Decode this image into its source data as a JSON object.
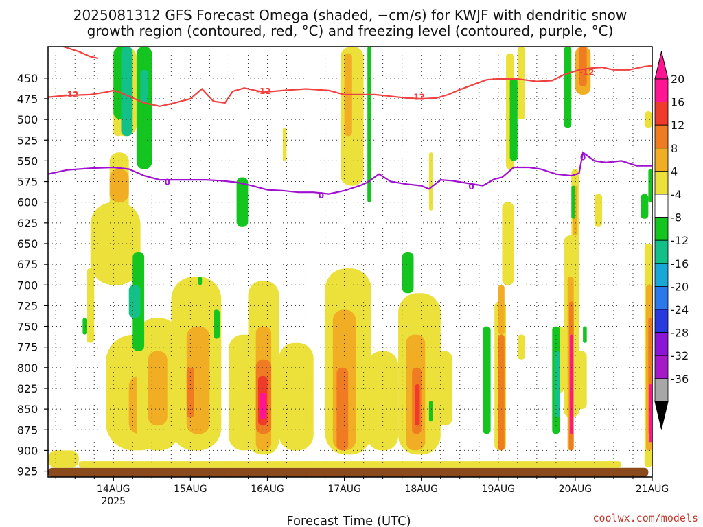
{
  "chart_data": {
    "type": "heatmap",
    "title_line1": "2025081312 GFS Forecast Omega (shaded, −cm/s) for KWJF with dendritic snow",
    "title_line2": "growth region (contoured, red, °C) and freezing level (contoured, purple, °C)",
    "xlabel": "Forecast Time (UTC)",
    "credit": "coolwx.com/models",
    "y_ticks": [
      450,
      475,
      500,
      525,
      550,
      575,
      600,
      625,
      650,
      675,
      700,
      725,
      750,
      775,
      800,
      825,
      850,
      875,
      900,
      925
    ],
    "ylim_hpa": [
      412,
      932
    ],
    "x_ticks": [
      {
        "label": "14AUG",
        "sub": "2025",
        "day": 1
      },
      {
        "label": "15AUG",
        "sub": "",
        "day": 2
      },
      {
        "label": "16AUG",
        "sub": "",
        "day": 3
      },
      {
        "label": "17AUG",
        "sub": "",
        "day": 4
      },
      {
        "label": "18AUG",
        "sub": "",
        "day": 5
      },
      {
        "label": "19AUG",
        "sub": "",
        "day": 6
      },
      {
        "label": "20AUG",
        "sub": "",
        "day": 7
      },
      {
        "label": "21AUG",
        "sub": "",
        "day": 8
      }
    ],
    "xlim_days": [
      0.15,
      8.0
    ],
    "grid": true,
    "colorbar": {
      "levels": [
        20,
        16,
        12,
        8,
        4,
        -4,
        -8,
        -12,
        -16,
        -20,
        -24,
        -28,
        -32,
        -36
      ],
      "colors": [
        "#ff1493",
        "#f03a2a",
        "#ef7b22",
        "#f1ad24",
        "#ece03a",
        "#ffffff",
        "#14c51f",
        "#13c088",
        "#19a8d6",
        "#2a78ea",
        "#2739df",
        "#8b14d6",
        "#a51ac8",
        "#a7a7a7"
      ],
      "top_cap": "#ff1493",
      "bottom_cap": "#000000"
    },
    "series": [
      {
        "name": "-12",
        "color": "#f04040",
        "labels": [
          {
            "text": "-12",
            "day": 0.45,
            "p": 470
          },
          {
            "text": "-12",
            "day": 2.95,
            "p": 466
          },
          {
            "text": "-12",
            "day": 4.95,
            "p": 473
          },
          {
            "text": "-12",
            "day": 7.15,
            "p": 443
          }
        ],
        "x": [
          0.15,
          0.4,
          0.7,
          0.9,
          1.0,
          1.1,
          1.25,
          1.4,
          1.6,
          1.75,
          2.0,
          2.15,
          2.3,
          2.45,
          2.55,
          2.7,
          2.8,
          2.95,
          3.2,
          3.5,
          3.8,
          4.0,
          4.2,
          4.4,
          4.6,
          4.8,
          5.0,
          5.2,
          5.35,
          5.5,
          5.7,
          5.85,
          6.0,
          6.25,
          6.5,
          6.7,
          6.85,
          7.05,
          7.2,
          7.35,
          7.5,
          7.7,
          7.9,
          8.0
        ],
        "y": [
          473,
          471,
          470,
          467,
          465,
          468,
          474,
          480,
          484,
          481,
          475,
          463,
          478,
          480,
          466,
          462,
          464,
          467,
          465,
          463,
          465,
          470,
          470,
          470,
          472,
          474,
          475,
          474,
          470,
          464,
          457,
          452,
          451,
          451,
          454,
          453,
          446,
          440,
          438,
          437,
          440,
          440,
          436,
          435
        ]
      },
      {
        "name": "-12 upper",
        "color": "#f04040",
        "labels": [],
        "x": [
          0.35,
          0.55,
          0.7,
          0.8
        ],
        "y": [
          412,
          418,
          424,
          426
        ]
      },
      {
        "name": "0",
        "color": "#a010d0",
        "labels": [
          {
            "text": "0",
            "day": 1.7,
            "p": 576
          },
          {
            "text": "0",
            "day": 3.7,
            "p": 592
          },
          {
            "text": "0",
            "day": 5.65,
            "p": 581
          },
          {
            "text": "0",
            "day": 7.1,
            "p": 546
          }
        ],
        "x": [
          0.15,
          0.4,
          0.7,
          1.0,
          1.2,
          1.4,
          1.6,
          1.8,
          2.0,
          2.2,
          2.4,
          2.6,
          2.8,
          3.0,
          3.2,
          3.4,
          3.6,
          3.8,
          4.0,
          4.2,
          4.3,
          4.45,
          4.6,
          4.8,
          5.0,
          5.1,
          5.25,
          5.4,
          5.6,
          5.8,
          5.95,
          6.05,
          6.2,
          6.4,
          6.55,
          6.75,
          6.95,
          7.05,
          7.1,
          7.25,
          7.4,
          7.6,
          7.8,
          8.0
        ],
        "y": [
          566,
          561,
          559,
          558,
          560,
          568,
          573,
          573,
          573,
          573,
          574,
          576,
          580,
          585,
          586,
          588,
          588,
          590,
          586,
          580,
          576,
          566,
          575,
          578,
          580,
          584,
          573,
          574,
          577,
          580,
          572,
          570,
          558,
          558,
          560,
          566,
          568,
          565,
          540,
          550,
          552,
          550,
          556,
          556
        ]
      }
    ],
    "cells_columns": [
      "day_start",
      "day_end",
      "p_top",
      "p_bottom",
      "omega_level"
    ],
    "cells": [
      [
        0.15,
        7.95,
        921,
        932,
        "terrain"
      ],
      [
        0.15,
        0.55,
        900,
        921,
        4
      ],
      [
        0.55,
        7.6,
        913,
        921,
        4
      ],
      [
        0.65,
        0.75,
        680,
        770,
        4
      ],
      [
        0.7,
        1.35,
        600,
        700,
        4
      ],
      [
        0.95,
        1.2,
        540,
        620,
        4
      ],
      [
        0.95,
        1.2,
        560,
        600,
        8
      ],
      [
        0.9,
        1.7,
        760,
        900,
        4
      ],
      [
        1.2,
        1.5,
        810,
        880,
        8
      ],
      [
        1.3,
        1.85,
        740,
        900,
        4
      ],
      [
        1.45,
        1.7,
        780,
        870,
        8
      ],
      [
        1.75,
        2.4,
        690,
        900,
        4
      ],
      [
        1.95,
        2.25,
        750,
        880,
        8
      ],
      [
        1.95,
        2.05,
        800,
        860,
        12
      ],
      [
        2.5,
        2.9,
        760,
        900,
        4
      ],
      [
        2.75,
        3.15,
        695,
        905,
        4
      ],
      [
        2.85,
        3.05,
        750,
        900,
        8
      ],
      [
        2.85,
        3.05,
        790,
        880,
        12
      ],
      [
        2.88,
        3.0,
        810,
        870,
        16
      ],
      [
        2.9,
        2.98,
        830,
        862,
        20
      ],
      [
        3.15,
        3.6,
        770,
        900,
        4
      ],
      [
        3.75,
        4.35,
        680,
        905,
        4
      ],
      [
        3.85,
        4.15,
        730,
        900,
        8
      ],
      [
        3.9,
        4.05,
        800,
        900,
        12
      ],
      [
        4.3,
        4.7,
        780,
        900,
        4
      ],
      [
        4.7,
        5.25,
        710,
        905,
        4
      ],
      [
        4.8,
        5.05,
        760,
        900,
        8
      ],
      [
        4.88,
        5.0,
        800,
        880,
        12
      ],
      [
        4.92,
        4.98,
        820,
        870,
        16
      ],
      [
        5.2,
        5.4,
        780,
        870,
        4
      ],
      [
        5.95,
        6.1,
        720,
        900,
        4
      ],
      [
        6.0,
        6.08,
        760,
        900,
        12
      ],
      [
        6.0,
        6.08,
        700,
        760,
        8
      ],
      [
        6.05,
        6.2,
        600,
        700,
        4
      ],
      [
        6.25,
        6.35,
        760,
        790,
        4
      ],
      [
        6.75,
        6.85,
        750,
        830,
        4
      ],
      [
        6.85,
        7.05,
        640,
        860,
        4
      ],
      [
        6.9,
        6.98,
        690,
        900,
        8
      ],
      [
        6.92,
        6.98,
        720,
        900,
        12
      ],
      [
        6.93,
        6.97,
        760,
        880,
        20
      ],
      [
        6.95,
        7.05,
        560,
        660,
        4
      ],
      [
        6.97,
        7.03,
        580,
        640,
        8
      ],
      [
        7.0,
        7.15,
        780,
        850,
        4
      ],
      [
        7.25,
        7.35,
        590,
        630,
        4
      ],
      [
        7.9,
        8.0,
        650,
        920,
        4
      ],
      [
        7.92,
        8.0,
        700,
        900,
        8
      ],
      [
        7.95,
        8.0,
        740,
        880,
        12
      ],
      [
        7.96,
        8.0,
        820,
        890,
        20
      ],
      [
        7.9,
        8.0,
        490,
        510,
        4
      ],
      [
        3.2,
        3.25,
        510,
        550,
        4
      ],
      [
        3.95,
        4.25,
        412,
        580,
        4
      ],
      [
        4.0,
        4.1,
        420,
        520,
        8
      ],
      [
        1.0,
        1.3,
        412,
        520,
        4
      ],
      [
        5.1,
        5.15,
        540,
        610,
        4
      ],
      [
        6.1,
        6.2,
        420,
        560,
        4
      ],
      [
        6.25,
        6.35,
        412,
        500,
        4
      ],
      [
        6.85,
        6.95,
        412,
        490,
        4
      ],
      [
        7.0,
        7.2,
        412,
        470,
        8
      ],
      [
        7.05,
        7.15,
        412,
        460,
        12
      ],
      [
        1.0,
        1.12,
        450,
        520,
        4
      ],
      [
        0.6,
        0.65,
        740,
        760,
        -8
      ],
      [
        1.0,
        1.2,
        412,
        500,
        -8
      ],
      [
        1.1,
        1.25,
        412,
        520,
        -12
      ],
      [
        1.3,
        1.5,
        412,
        560,
        -8
      ],
      [
        1.35,
        1.45,
        440,
        480,
        -12
      ],
      [
        1.25,
        1.4,
        660,
        780,
        -8
      ],
      [
        1.2,
        1.35,
        700,
        740,
        -12
      ],
      [
        2.1,
        2.15,
        690,
        700,
        -8
      ],
      [
        2.3,
        2.38,
        730,
        765,
        -8
      ],
      [
        2.6,
        2.75,
        570,
        630,
        -8
      ],
      [
        4.3,
        4.35,
        412,
        600,
        -8
      ],
      [
        4.75,
        4.9,
        660,
        710,
        -8
      ],
      [
        5.1,
        5.15,
        840,
        865,
        -8
      ],
      [
        5.8,
        5.9,
        750,
        880,
        -8
      ],
      [
        6.15,
        6.25,
        450,
        550,
        -8
      ],
      [
        6.7,
        6.8,
        750,
        880,
        -8
      ],
      [
        6.73,
        6.8,
        780,
        860,
        -12
      ],
      [
        6.85,
        6.95,
        412,
        510,
        -8
      ],
      [
        6.95,
        7.0,
        580,
        620,
        -8
      ],
      [
        7.1,
        7.15,
        750,
        770,
        -8
      ],
      [
        7.85,
        7.95,
        590,
        620,
        -8
      ],
      [
        7.95,
        8.0,
        560,
        600,
        -8
      ]
    ]
  }
}
